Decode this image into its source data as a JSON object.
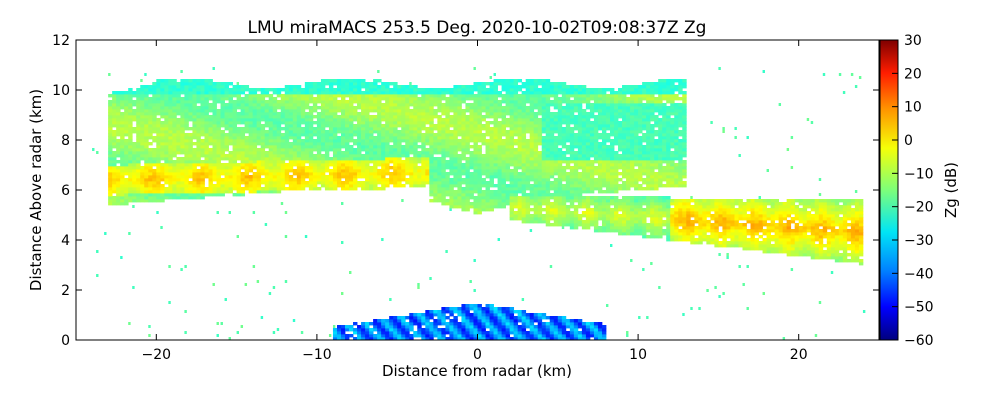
{
  "chart_data": {
    "type": "heatmap",
    "title": "LMU miraMACS 253.5 Deg. 2020-10-02T09:08:37Z  Zg",
    "xlabel": "Distance from radar (km)",
    "ylabel": "Distance Above radar  (km)",
    "xlim": [
      -25,
      25
    ],
    "ylim": [
      0,
      12
    ],
    "x_ticks": [
      -20,
      -10,
      0,
      10,
      20
    ],
    "x_tick_labels": [
      "−20",
      "−10",
      "0",
      "10",
      "20"
    ],
    "y_ticks": [
      0,
      2,
      4,
      6,
      8,
      10,
      12
    ],
    "y_tick_labels": [
      "0",
      "2",
      "4",
      "6",
      "8",
      "10",
      "12"
    ],
    "colorbar": {
      "label": "Zg (dB)",
      "range": [
        -60,
        30
      ],
      "ticks": [
        30,
        20,
        10,
        0,
        -10,
        -20,
        -30,
        -40,
        -50,
        -60
      ],
      "tick_labels": [
        "30",
        "20",
        "10",
        "0",
        "−10",
        "−20",
        "−30",
        "−40",
        "−50",
        "−60"
      ],
      "colormap": "jet"
    },
    "features": [
      {
        "name": "upper cloud layer",
        "x_range": [
          -23,
          13
        ],
        "top_km": 10.4,
        "base_km": 5.4,
        "typical_dB": -12
      },
      {
        "name": "enhanced band left",
        "x_range": [
          -23,
          -3
        ],
        "height_km": 6.3,
        "typical_dB": -2
      },
      {
        "name": "descending tail right",
        "x_range": [
          2,
          24
        ],
        "height_range_km": [
          4.2,
          5.8
        ],
        "max_dB": 3
      },
      {
        "name": "near-ground clutter",
        "x_range": [
          -9,
          8
        ],
        "top_km": 1.5,
        "typical_dB": -38
      }
    ]
  }
}
